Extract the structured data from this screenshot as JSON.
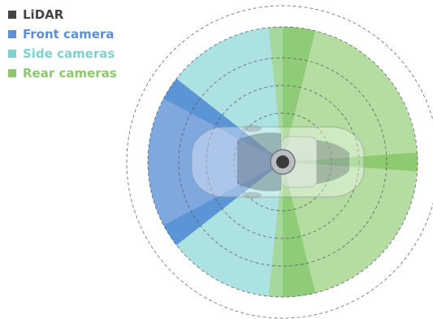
{
  "legend": [
    {
      "label": "LiDAR",
      "color": "#444444"
    },
    {
      "label": "Front camera",
      "color": "#5b8fd6"
    },
    {
      "label": "Side cameras",
      "color": "#7fd0cf"
    },
    {
      "label": "Rear cameras",
      "color": "#8cc96b"
    }
  ],
  "colors": {
    "front": "#5b8fd6",
    "side": "#9ddedd",
    "rear": "#a3d58b",
    "rear_strong": "#7cc25b",
    "front_strong": "#4e8ad4",
    "lidar": "#3a3a3a",
    "dashed_ring": "#555555"
  }
}
